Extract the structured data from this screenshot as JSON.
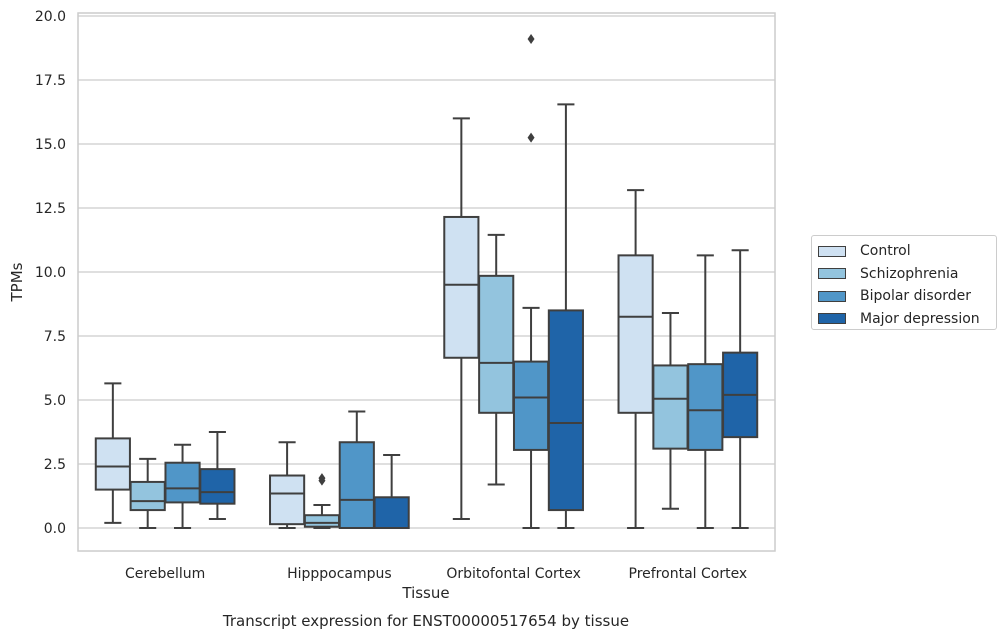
{
  "chart_data": {
    "type": "boxplot",
    "title": "",
    "xlabel": "Tissue",
    "ylabel": "TPMs",
    "caption": "Transcript expression for ENST00000517654 by tissue",
    "ylim": [
      -0.9,
      20.1
    ],
    "yticks": [
      "0.0",
      "2.5",
      "5.0",
      "7.5",
      "10.0",
      "12.5",
      "15.0",
      "17.5",
      "20.0"
    ],
    "grid": "horizontal",
    "legend_placement": "center-right",
    "categories": [
      "Cerebellum",
      "Hipppocampus",
      "Orbitofontal Cortex",
      "Prefrontal Cortex"
    ],
    "series": [
      {
        "name": "Control",
        "color": "#cfe1f2",
        "boxes": [
          {
            "whislo": 0.2,
            "q1": 1.5,
            "med": 2.4,
            "q3": 3.5,
            "whishi": 5.65,
            "fliers": []
          },
          {
            "whislo": 0.0,
            "q1": 0.15,
            "med": 1.35,
            "q3": 2.05,
            "whishi": 3.35,
            "fliers": []
          },
          {
            "whislo": 0.35,
            "q1": 6.65,
            "med": 9.5,
            "q3": 12.15,
            "whishi": 16.0,
            "fliers": []
          },
          {
            "whislo": 0.0,
            "q1": 4.5,
            "med": 8.25,
            "q3": 10.65,
            "whishi": 13.2,
            "fliers": []
          }
        ]
      },
      {
        "name": "Schizophrenia",
        "color": "#93c4de",
        "boxes": [
          {
            "whislo": 0.0,
            "q1": 0.7,
            "med": 1.05,
            "q3": 1.8,
            "whishi": 2.7,
            "fliers": []
          },
          {
            "whislo": 0.0,
            "q1": 0.05,
            "med": 0.2,
            "q3": 0.5,
            "whishi": 0.9,
            "fliers": [
              1.85,
              1.95
            ]
          },
          {
            "whislo": 1.7,
            "q1": 4.5,
            "med": 6.45,
            "q3": 9.85,
            "whishi": 11.45,
            "fliers": []
          },
          {
            "whislo": 0.75,
            "q1": 3.1,
            "med": 5.05,
            "q3": 6.35,
            "whishi": 8.4,
            "fliers": []
          }
        ]
      },
      {
        "name": "Bipolar disorder",
        "color": "#5096c8",
        "boxes": [
          {
            "whislo": 0.0,
            "q1": 1.0,
            "med": 1.55,
            "q3": 2.55,
            "whishi": 3.25,
            "fliers": []
          },
          {
            "whislo": 0.0,
            "q1": 0.0,
            "med": 1.1,
            "q3": 3.35,
            "whishi": 4.55,
            "fliers": []
          },
          {
            "whislo": 0.0,
            "q1": 3.05,
            "med": 5.1,
            "q3": 6.5,
            "whishi": 8.6,
            "fliers": [
              15.25,
              19.1
            ]
          },
          {
            "whislo": 0.0,
            "q1": 3.05,
            "med": 4.6,
            "q3": 6.4,
            "whishi": 10.65,
            "fliers": []
          }
        ]
      },
      {
        "name": "Major depression",
        "color": "#1f64a8",
        "boxes": [
          {
            "whislo": 0.35,
            "q1": 0.95,
            "med": 1.4,
            "q3": 2.3,
            "whishi": 3.75,
            "fliers": []
          },
          {
            "whislo": 0.0,
            "q1": 0.0,
            "med": 0.0,
            "q3": 1.2,
            "whishi": 2.85,
            "fliers": []
          },
          {
            "whislo": 0.0,
            "q1": 0.7,
            "med": 4.1,
            "q3": 8.5,
            "whishi": 16.55,
            "fliers": []
          },
          {
            "whislo": 0.0,
            "q1": 3.55,
            "med": 5.2,
            "q3": 6.85,
            "whishi": 10.85,
            "fliers": []
          }
        ]
      }
    ]
  }
}
